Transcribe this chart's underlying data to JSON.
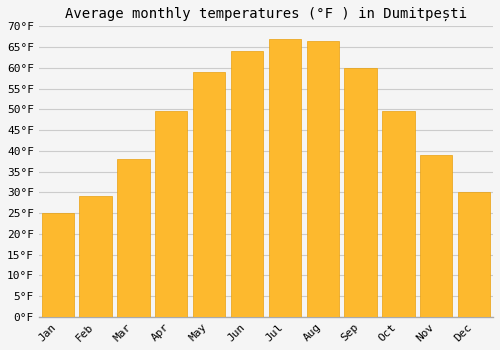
{
  "title": "Average monthly temperatures (°F ) in Dumitреști",
  "months": [
    "Jan",
    "Feb",
    "Mar",
    "Apr",
    "May",
    "Jun",
    "Jul",
    "Aug",
    "Sep",
    "Oct",
    "Nov",
    "Dec"
  ],
  "values": [
    25,
    29,
    38,
    49.5,
    59,
    64,
    67,
    66.5,
    60,
    49.5,
    39,
    30
  ],
  "bar_color_top": "#FDB92E",
  "bar_color_bottom": "#F5A800",
  "bar_edge_color": "#E8A010",
  "ylim": [
    0,
    70
  ],
  "yticks": [
    0,
    5,
    10,
    15,
    20,
    25,
    30,
    35,
    40,
    45,
    50,
    55,
    60,
    65,
    70
  ],
  "ylabel_suffix": "°F",
  "bg_color": "#f5f5f5",
  "plot_bg_color": "#f5f5f5",
  "grid_color": "#cccccc",
  "title_fontsize": 10,
  "tick_fontsize": 8,
  "font_family": "monospace"
}
